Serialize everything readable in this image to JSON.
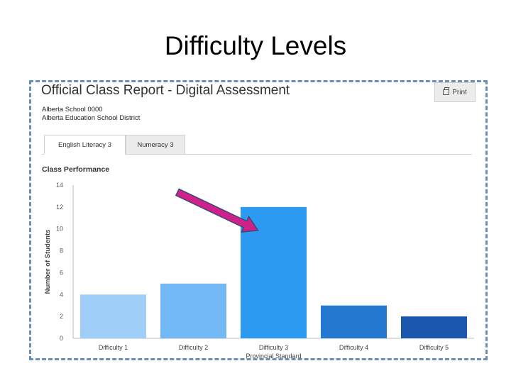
{
  "slide": {
    "title": "Difficulty Levels"
  },
  "report": {
    "title": "Official Class Report - Digital Assessment",
    "print_label": "Print",
    "school": "Alberta School 0000",
    "district": "Alberta Education School District"
  },
  "tabs": [
    {
      "label": "English Literacy 3",
      "active": true
    },
    {
      "label": "Numeracy 3",
      "active": false
    }
  ],
  "section_title": "Class Performance",
  "chart_data": {
    "type": "bar",
    "ylabel": "Number of Students",
    "ylim": [
      0,
      14
    ],
    "yticks": [
      0,
      2,
      4,
      6,
      8,
      10,
      12,
      14
    ],
    "categories": [
      "Difficulty 1",
      "Difficulty 2",
      "Difficulty 3",
      "Difficulty 4",
      "Difficulty 5"
    ],
    "values": [
      4,
      5,
      12,
      3,
      2
    ],
    "colors": [
      "#9fcff8",
      "#72b8f5",
      "#2b9af0",
      "#2478d0",
      "#1a57ad"
    ],
    "annotation": {
      "category": "Difficulty 3",
      "text": "Provincial Standard"
    },
    "arrow_color": "#d0208a"
  }
}
